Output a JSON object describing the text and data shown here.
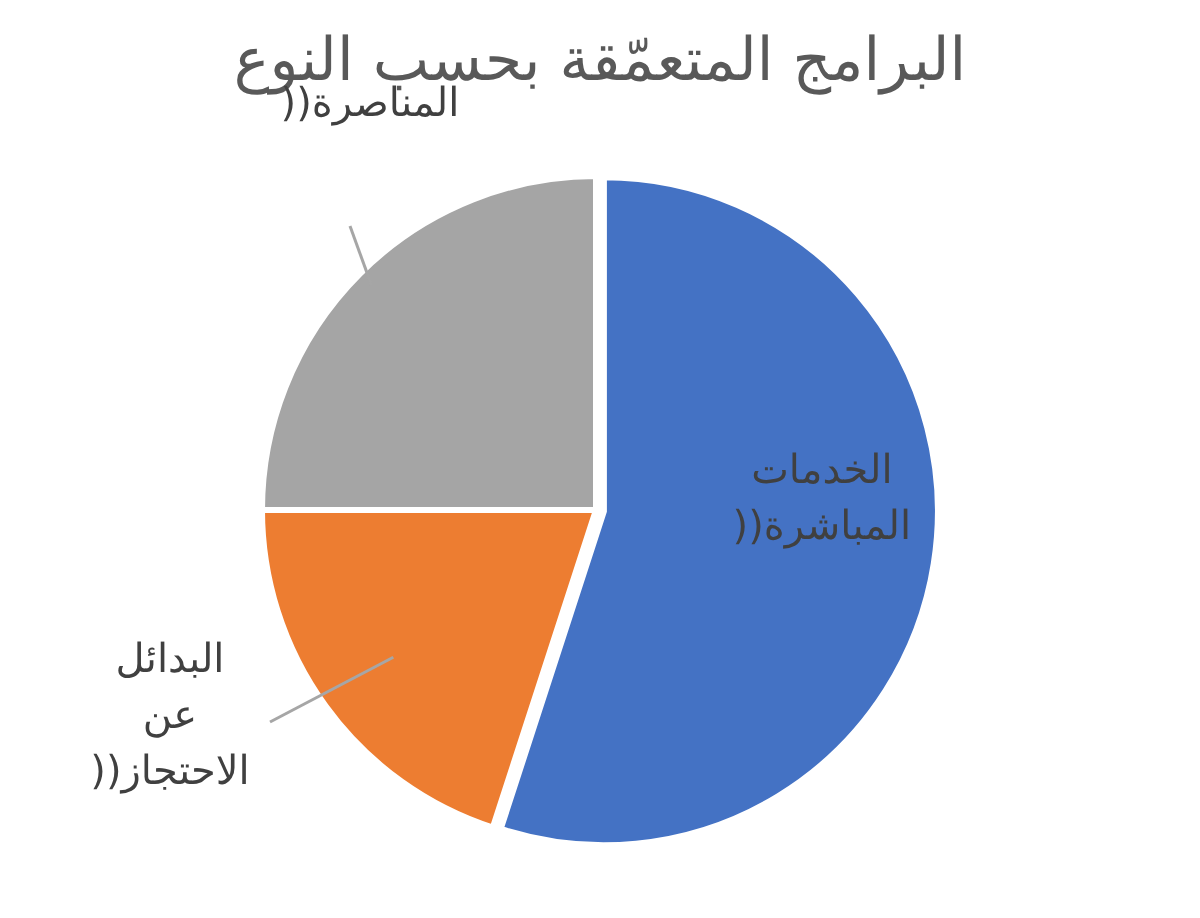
{
  "chart_data": {
    "type": "pie",
    "title": "البرامج المتعمّقة بحسب النوع",
    "categories": [
      "الخدمات المباشرة((",
      "البدائل عن الاحتجاز((",
      "المناصرة(("
    ],
    "values": [
      55,
      20,
      25
    ],
    "colors": [
      "#4472c4",
      "#ed7d31",
      "#a5a5a5"
    ],
    "legend": false
  }
}
